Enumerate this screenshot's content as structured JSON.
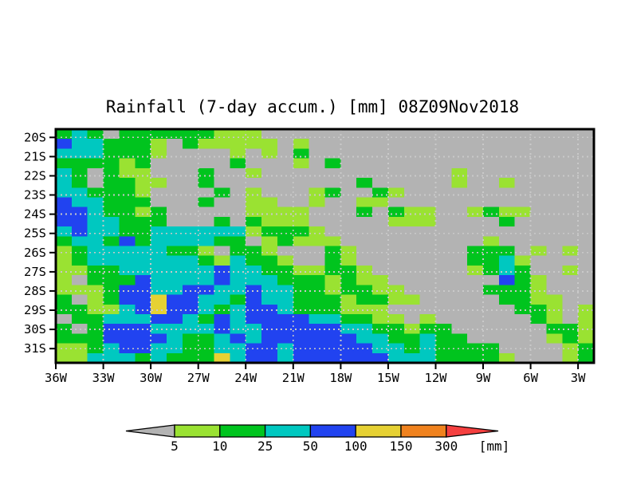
{
  "title": "Rainfall (7-day accum.) [mm] 08Z09Nov2018",
  "chart_data": {
    "type": "heatmap",
    "title": "Rainfall (7-day accum.) [mm] 08Z09Nov2018",
    "x_axis": {
      "tick_labels": [
        "36W",
        "33W",
        "30W",
        "27W",
        "24W",
        "21W",
        "18W",
        "15W",
        "12W",
        "9W",
        "6W",
        "3W"
      ],
      "range": "36W to 2W",
      "tick_step_deg": 3
    },
    "y_axis": {
      "tick_labels": [
        "20S",
        "21S",
        "22S",
        "23S",
        "24S",
        "25S",
        "26S",
        "27S",
        "28S",
        "29S",
        "30S",
        "31S"
      ],
      "range": "19.6S to 31.7S",
      "tick_step_deg": 1
    },
    "levels_mm": [
      5,
      10,
      25,
      50,
      100,
      150,
      300
    ],
    "palette": {
      "G": "#b3b3b3",
      "L": "#9ae232",
      "g": "#00c41e",
      "c": "#00c8c0",
      "b": "#2143f0",
      "y": "#e6d133",
      "o": "#f0821e",
      "r": "#f54040"
    },
    "palette_meaning": {
      "G": "<5",
      "L": "5-10",
      "g": "10-25",
      "c": "25-50",
      "b": "50-100",
      "y": "100-150",
      "o": "150-300",
      "r": ">300"
    },
    "grid_cell_deg": {
      "lon": 1.0,
      "lat": 0.5
    },
    "grid_rows": [
      "gcgGggggggLLLGGGGGGGGGGGGGGGGGGGGG",
      "bccgggLGgLLLLLGLGGGGGGGGGGGGGGGGGG",
      "cccgggLGGGGLGLGgGGGGGGGGGGGGGGGGGG",
      "ggggLgGGGGGgGGGLGgGGGGGGGGGGGGGGGG",
      "cgGgLLGGGgGGLGGGGGGGGGGGGLGGGGGGGG",
      "cgGggLLGGgGGGGGGGGGgGGGGGLGGLGGGGG",
      "ccgggLGGGGgGLGGGLgGGgLGGGGGGGGGGGG",
      "bccgggGGGgGGLLGGLGGLLGGGGGGGGGGGGG",
      "bbcggLgGGGGGLLLLGGGgGgLLGGLgLLGGGG",
      "bbccgggGGGgGgLLLGGGGGLLLGGGGgGGGGG",
      "cbccggccccccLgggLGGGGGGGGGGGGGGGGG",
      "gccgbgccccggGLgLLLGGGGGGGGGLGGGGGG",
      "LgcccccggLGggLGGGgLGGGGGGGgggGLGLG",
      "LgcccccccgLcggLGGgLGGGGGGGggcLGGGG",
      "LLggccccccbccggLLggLGGGGGGLgcgGGLG",
      "LGgggbccccbcccgggLgLLGGGGGGGbgLGGG",
      "LLLgbbccbbccbccggLggLLGGGGGgggLGGG",
      "gGLgbbybbccgbccgggLggLLGGGGGggLLGG",
      "ggLLcbybbcgcbbcgggLLLGGGGGGGGggLGL",
      "GggcccbbcgbcbbbbccggLLGLGGGGGGgLGL",
      "gGgbbbccccbccbbbbbccggLggGGGGGGggL",
      "gggbbbbcggcbcbbbbbbccggcggGGGGGLgL",
      "LLgcbbccggccbbcbbbbbccgcggggGGGGLg",
      "LLcccgcgggycbbcbbbbbbcccggggLGGGLg"
    ],
    "gridlines": {
      "style": "dotted",
      "color": "#c9c9c9",
      "lon_step_deg": 3,
      "lat_step_deg": 1
    },
    "legend_position": "bottom"
  },
  "colorbar": {
    "tick_labels": [
      "5",
      "10",
      "25",
      "50",
      "100",
      "150",
      "300"
    ],
    "unit_label": "[mm]",
    "segment_colors": [
      "#9ae232",
      "#00c41e",
      "#00c8c0",
      "#2143f0",
      "#e6d133",
      "#f0821e"
    ],
    "left_arrow_color": "#b3b3b3",
    "right_arrow_color": "#f54040",
    "outline_color": "#000000"
  }
}
